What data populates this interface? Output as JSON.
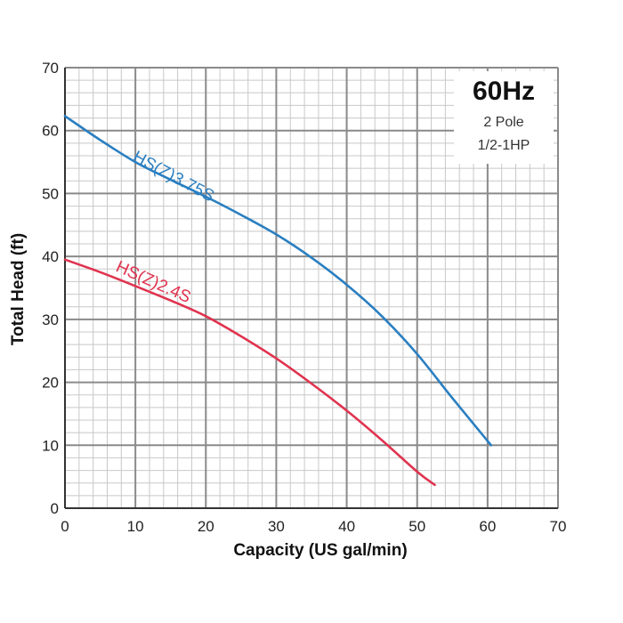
{
  "chart_data": {
    "type": "line",
    "xlabel": "Capacity (US gal/min)",
    "ylabel": "Total Head (ft)",
    "xlim": [
      0,
      70
    ],
    "ylim": [
      0,
      70
    ],
    "x_ticks": [
      0,
      10,
      20,
      30,
      40,
      50,
      60,
      70
    ],
    "y_ticks": [
      0,
      10,
      20,
      30,
      40,
      50,
      60,
      70
    ],
    "minor_step": 2,
    "grid": true,
    "series": [
      {
        "name": "HS(Z)3.75S",
        "color": "#2a7fc1",
        "x": [
          0,
          5,
          10,
          15,
          20,
          25,
          30,
          35,
          40,
          45,
          50,
          55,
          60.5
        ],
        "y": [
          62.3,
          58.5,
          55,
          52.2,
          49.5,
          46.6,
          43.5,
          39.8,
          35.5,
          30.5,
          24.5,
          17.5,
          10
        ]
      },
      {
        "name": "HS(Z)2.4S",
        "color": "#e0334f",
        "x": [
          0,
          5,
          10,
          15,
          20,
          25,
          30,
          35,
          40,
          45,
          50,
          52.5
        ],
        "y": [
          39.5,
          37.5,
          35.3,
          33,
          30.5,
          27.3,
          23.8,
          19.8,
          15.5,
          10.8,
          5.8,
          3.7
        ]
      }
    ]
  },
  "info_box": {
    "title": "60Hz",
    "line1": "2 Pole",
    "line2": "1/2-1HP"
  }
}
